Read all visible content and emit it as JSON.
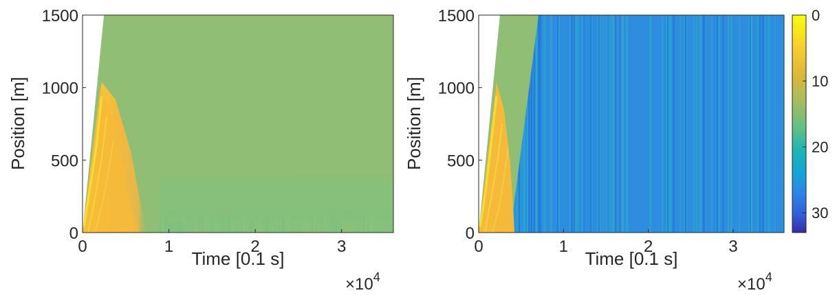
{
  "chart_data": [
    {
      "type": "heatmap",
      "id": "left",
      "xlabel": "Time [0.1 s]",
      "ylabel": "Position [m]",
      "x_multiplier_label": "×10",
      "x_multiplier_exp": "4",
      "xlim": [
        0,
        3.6
      ],
      "ylim": [
        0,
        1500
      ],
      "x_ticks": [
        0,
        1,
        2,
        3
      ],
      "x_tick_labels": [
        "0",
        "1",
        "2",
        "3"
      ],
      "y_ticks": [
        0,
        500,
        1000,
        1500
      ],
      "y_tick_labels": [
        "0",
        "500",
        "1000",
        "1500"
      ],
      "grid": false,
      "description": "Slow wave region (~1–6 near t<0.6×10^4) decaying to uniform ~12 elsewhere; slightly higher (~13) near bottom after t≈1×10^4"
    },
    {
      "type": "heatmap",
      "id": "right",
      "xlabel": "Time [0.1 s]",
      "ylabel": "Position [m]",
      "x_multiplier_label": "×10",
      "x_multiplier_exp": "4",
      "xlim": [
        0,
        3.6
      ],
      "ylim": [
        0,
        1500
      ],
      "x_ticks": [
        0,
        1,
        2,
        3
      ],
      "x_tick_labels": [
        "0",
        "1",
        "2",
        "3"
      ],
      "y_ticks": [
        0,
        500,
        1000,
        1500
      ],
      "y_tick_labels": [
        "0",
        "500",
        "1000",
        "1500"
      ],
      "grid": false,
      "description": "Slow wave region near start, ~12 band until front, then ~25 (blue) with vertical streaks after t≈0.4–0.7×10^4"
    }
  ],
  "colorbar": {
    "ticks": [
      0,
      10,
      20,
      30
    ],
    "tick_labels": [
      "0",
      "10",
      "20",
      "30"
    ],
    "range": [
      0,
      33
    ],
    "reversed": true,
    "colormap": "parula"
  },
  "colors": {
    "uniform_green": "#8fbe74",
    "bottom_green": "#87c07a",
    "slow_orange": "#f6ba3a",
    "slow_yellow": "#f9e030",
    "fast_blue": "#2f8de0"
  }
}
